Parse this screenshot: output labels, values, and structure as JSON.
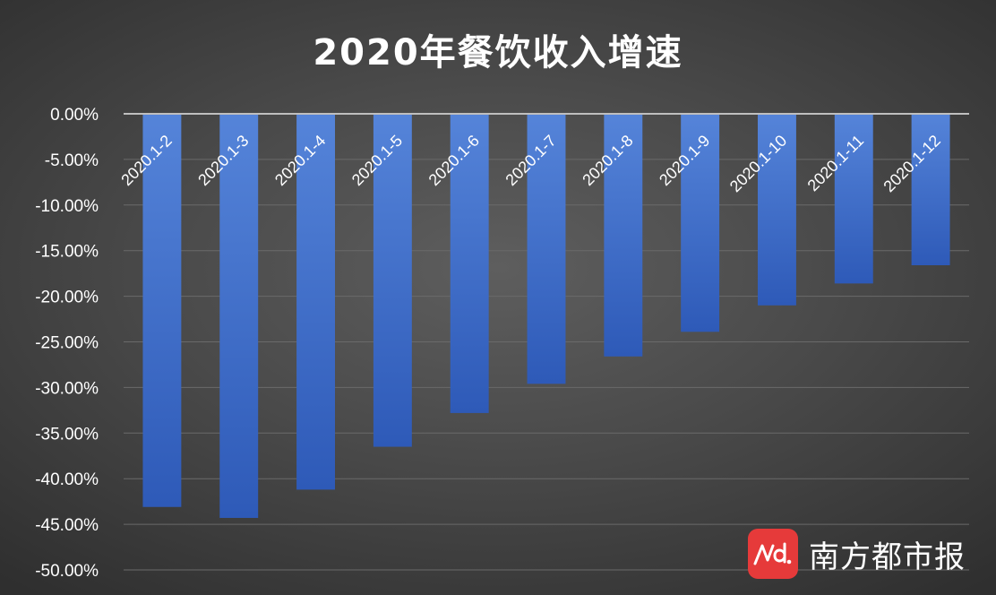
{
  "chart_data": {
    "type": "bar",
    "title": "2020年餐饮收入增速",
    "categories": [
      "2020.1-2",
      "2020.1-3",
      "2020.1-4",
      "2020.1-5",
      "2020.1-6",
      "2020.1-7",
      "2020.1-8",
      "2020.1-9",
      "2020.1-10",
      "2020.1-11",
      "2020.1-12"
    ],
    "values": [
      -43.1,
      -44.3,
      -41.2,
      -36.5,
      -32.8,
      -29.6,
      -26.6,
      -23.9,
      -21.0,
      -18.6,
      -16.6
    ],
    "value_unit": "%",
    "ylim": [
      -50,
      0
    ],
    "yticks": [
      "0.00%",
      "-5.00%",
      "-10.00%",
      "-15.00%",
      "-20.00%",
      "-25.00%",
      "-30.00%",
      "-35.00%",
      "-40.00%",
      "-45.00%",
      "-50.00%"
    ],
    "grid": true,
    "legend": "none",
    "colors": {
      "bar": "#4472c4",
      "bar_dark": "#2f5cb7",
      "background": "#4a4a4a",
      "text": "#ffffff",
      "grid": "#6a6a6a",
      "baseline": "#bfbfbf"
    }
  },
  "watermark": {
    "logo_text": "nd.",
    "brand": "南方都市报",
    "logo_color": "#e63a3a"
  }
}
